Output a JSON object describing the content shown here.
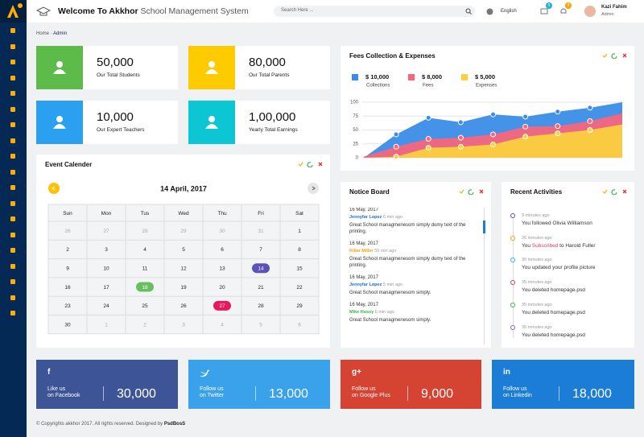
{
  "header": {
    "title": "Welcome To Akkhor",
    "subtitle": "School Management System",
    "search_placeholder": "Search Here ...",
    "language": "English",
    "message_count": "5",
    "notification_count": "8",
    "user_name": "Kazi Fahim",
    "user_role": "Admin"
  },
  "breadcrumb": [
    "Home",
    "Admin"
  ],
  "stats": [
    {
      "value": "50,000",
      "label": "Our Total Students",
      "color": "#5cbb49"
    },
    {
      "value": "80,000",
      "label": "Our Total Parents",
      "color": "#fecb00"
    },
    {
      "value": "10,000",
      "label": "Our Expert Teachers",
      "color": "#2b9ff0"
    },
    {
      "value": "1,00,000",
      "label": "Yearly Total Earnings",
      "color": "#0cc6d3"
    }
  ],
  "fees": {
    "title": "Fees Collection & Expenses",
    "summary": [
      {
        "amount": "$ 10,000",
        "label": "Collections"
      },
      {
        "amount": "$ 8,000",
        "label": "Fees"
      },
      {
        "amount": "$ 5,000",
        "label": "Expenses"
      }
    ],
    "chart_data": {
      "type": "area",
      "categories": [
        null,
        null,
        null,
        null,
        null,
        null,
        null,
        null,
        null
      ],
      "series": [
        {
          "color": "#3b8ce8",
          "values": [
            0,
            42,
            72,
            64,
            78,
            74,
            83,
            90,
            100
          ]
        },
        {
          "color": "#f7667c",
          "values": [
            2,
            20,
            34,
            36,
            42,
            56,
            57,
            66,
            80
          ]
        },
        {
          "color": "#fcd03f",
          "values": [
            0,
            2,
            18,
            20,
            24,
            38,
            44,
            50,
            60
          ]
        }
      ],
      "ylim": [
        0,
        100
      ],
      "yticks": [
        0,
        25,
        50,
        75,
        100
      ],
      "grid": true
    }
  },
  "calendar": {
    "title": "Event Calender",
    "month": "14 April, 2017",
    "weekdays": [
      "Sun",
      "Mon",
      "Tus",
      "Wed",
      "Thu",
      "Fri",
      "Sat"
    ],
    "weeks": [
      [
        26,
        27,
        28,
        29,
        30,
        31,
        1
      ],
      [
        2,
        3,
        4,
        5,
        6,
        7,
        8
      ],
      [
        9,
        10,
        11,
        12,
        13,
        {
          "value": 14,
          "color": "#5b54b6"
        },
        15
      ],
      [
        16,
        17,
        {
          "value": 18,
          "color": "#67bf5f"
        },
        19,
        20,
        21,
        22
      ],
      [
        23,
        24,
        25,
        26,
        {
          "value": 27,
          "color": "#e8185a"
        },
        28,
        29
      ],
      [
        30,
        1,
        2,
        3,
        4,
        5,
        6
      ]
    ]
  },
  "notices": {
    "title": "Notice Board",
    "items": [
      {
        "date": "16 May, 2017",
        "author": "Jennyfar Lopez",
        "author_color": "#1d6fd6",
        "time": "6 min ago",
        "text": "Great School managmenesom simply dumy text of the printing."
      },
      {
        "date": "16 May, 2017",
        "author": "Killar Miller",
        "author_color": "#ffa200",
        "time": "55 min ago",
        "text": "Great School managmenesom simply dumy text of the printing."
      },
      {
        "date": "16 May, 2017",
        "author": "Jennyfar Lopez",
        "author_color": "#1d6fd6",
        "time": "5 min ago",
        "text": "Great School managmenesom simply."
      },
      {
        "date": "16 May, 2017",
        "author": "Mike Hussy",
        "author_color": "#3cb44b",
        "time": "6 min ago",
        "text": "Great School managmenesom simply."
      }
    ]
  },
  "activities": {
    "title": "Recent Activities",
    "items": [
      {
        "time": "9 minutes ago",
        "text": "You followed Olivia Williamson",
        "dot_color": "#6f42c1"
      },
      {
        "time": "26 minutes ago",
        "before": "You",
        "highlight": "Subscribed",
        "after": "to Harold Fuller",
        "dot_color": "#ffa001"
      },
      {
        "time": "30 minutes ago",
        "text": "You updated your profile picture",
        "dot_color": "#1ec2d8"
      },
      {
        "time": "35 minutes ago",
        "text": "You deleted homepage.psd",
        "dot_color": "#e0395b"
      },
      {
        "time": "35 minutes ago",
        "text": "You deleted homepage.psd",
        "dot_color": "#40b549"
      },
      {
        "time": "35 minutes ago",
        "text": "You deleted homepage.psd",
        "dot_color": "#8a5fc8"
      }
    ]
  },
  "social": [
    {
      "icon": "f",
      "line1": "Like us",
      "line2": "on Facebook",
      "count": "30,000",
      "color": "#3d5596"
    },
    {
      "line1": "Follow us",
      "line2": "on Twitter",
      "count": "13,000",
      "color": "#3aa2ea"
    },
    {
      "icon": "g+",
      "line1": "Follow us",
      "line2": "on Google Plus",
      "count": "9,000",
      "color": "#d54333"
    },
    {
      "icon": "in",
      "line1": "Follow us",
      "line2": "on Linkedin",
      "count": "18,000",
      "color": "#1b7dd6"
    }
  ],
  "footer": {
    "text": "© Copyrights akkhor 2017. All rights reserved. Designed by ",
    "brand": "PsdBosS"
  }
}
